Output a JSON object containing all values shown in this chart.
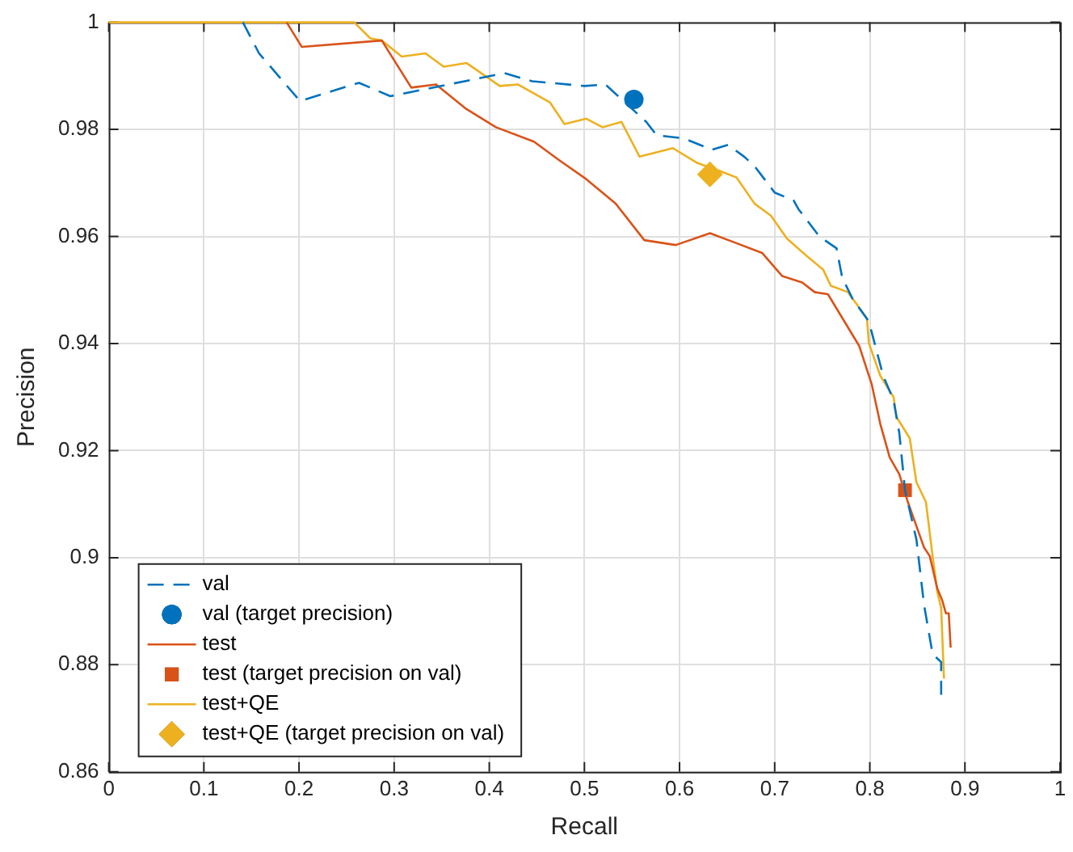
{
  "chart_data": {
    "type": "line",
    "xlabel": "Recall",
    "ylabel": "Precision",
    "xlim": [
      0,
      1
    ],
    "ylim": [
      0.86,
      1
    ],
    "xticks": [
      0,
      0.1,
      0.2,
      0.3,
      0.4,
      0.5,
      0.6,
      0.7,
      0.8,
      0.9,
      1
    ],
    "yticks": [
      0.86,
      0.88,
      0.9,
      0.92,
      0.94,
      0.96,
      0.98,
      1
    ],
    "grid": true,
    "legend": "bottom left",
    "series": [
      {
        "name": "val",
        "line_style": "dashed",
        "marker": "none",
        "color": "#0072bd",
        "x": [
          0.141,
          0.158,
          0.201,
          0.263,
          0.296,
          0.416,
          0.445,
          0.5,
          0.522,
          0.565,
          0.576,
          0.605,
          0.634,
          0.651,
          0.668,
          0.679,
          0.7,
          0.72,
          0.725,
          0.747,
          0.765,
          0.771,
          0.782,
          0.799,
          0.805,
          0.814,
          0.825,
          0.831,
          0.837,
          0.849,
          0.857,
          0.866,
          0.875,
          0.875
        ],
        "values": [
          1,
          0.9942,
          0.9853,
          0.9887,
          0.9862,
          0.9905,
          0.989,
          0.9881,
          0.9884,
          0.9814,
          0.9789,
          0.9783,
          0.9762,
          0.9771,
          0.9749,
          0.9731,
          0.9682,
          0.9667,
          0.9651,
          0.96,
          0.9578,
          0.9523,
          0.9483,
          0.9441,
          0.9401,
          0.934,
          0.9294,
          0.9233,
          0.9126,
          0.9034,
          0.8912,
          0.882,
          0.8805,
          0.8744
        ]
      },
      {
        "name": "val (target precision)",
        "type": "scatter",
        "marker": "circle",
        "color": "#0072bd",
        "x": [
          0.552
        ],
        "values": [
          0.9856
        ]
      },
      {
        "name": "test",
        "line_style": "solid",
        "marker": "none",
        "color": "#d95319",
        "x": [
          0.187,
          0.203,
          0.287,
          0.318,
          0.344,
          0.376,
          0.407,
          0.447,
          0.473,
          0.502,
          0.533,
          0.563,
          0.596,
          0.632,
          0.656,
          0.687,
          0.708,
          0.729,
          0.742,
          0.756,
          0.789,
          0.802,
          0.811,
          0.821,
          0.831,
          0.84,
          0.854,
          0.857,
          0.863,
          0.871,
          0.876,
          0.88,
          0.883,
          0.885
        ],
        "values": [
          1,
          0.9954,
          0.9966,
          0.9878,
          0.9884,
          0.9838,
          0.9804,
          0.9777,
          0.9743,
          0.9707,
          0.9661,
          0.9593,
          0.9584,
          0.9606,
          0.959,
          0.9569,
          0.9526,
          0.9514,
          0.9496,
          0.9492,
          0.9395,
          0.9324,
          0.925,
          0.9187,
          0.9156,
          0.9104,
          0.9034,
          0.9019,
          0.9003,
          0.8942,
          0.8921,
          0.8896,
          0.8896,
          0.8832
        ]
      },
      {
        "name": "test (target precision on val)",
        "type": "scatter",
        "marker": "square",
        "color": "#d95319",
        "x": [
          0.837
        ],
        "values": [
          0.9126
        ]
      },
      {
        "name": "test+QE",
        "line_style": "solid",
        "marker": "none",
        "color": "#edb120",
        "x": [
          0,
          0.258,
          0.275,
          0.287,
          0.308,
          0.333,
          0.352,
          0.376,
          0.411,
          0.43,
          0.464,
          0.479,
          0.502,
          0.519,
          0.539,
          0.558,
          0.593,
          0.619,
          0.643,
          0.66,
          0.679,
          0.696,
          0.713,
          0.734,
          0.751,
          0.759,
          0.777,
          0.797,
          0.799,
          0.811,
          0.825,
          0.828,
          0.842,
          0.849,
          0.859,
          0.866,
          0.871,
          0.875,
          0.878
        ],
        "values": [
          1,
          1,
          0.997,
          0.9966,
          0.9936,
          0.9942,
          0.9917,
          0.9924,
          0.9881,
          0.9884,
          0.985,
          0.981,
          0.982,
          0.9804,
          0.9814,
          0.9749,
          0.9765,
          0.9737,
          0.9722,
          0.971,
          0.9661,
          0.9639,
          0.9596,
          0.9563,
          0.9538,
          0.9508,
          0.9496,
          0.9447,
          0.9401,
          0.934,
          0.93,
          0.9263,
          0.9223,
          0.9141,
          0.9104,
          0.9003,
          0.8936,
          0.8906,
          0.8774
        ]
      },
      {
        "name": "test+QE (target precision on val)",
        "type": "scatter",
        "marker": "diamond",
        "color": "#edb120",
        "x": [
          0.632
        ],
        "values": [
          0.9716
        ]
      }
    ]
  }
}
